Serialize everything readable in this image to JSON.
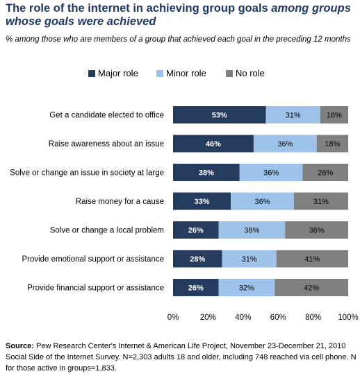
{
  "title": {
    "main": "The role of the internet in achieving group goals ",
    "italic": "among groups whose goals were achieved"
  },
  "subtitle": "% among those who are members of a group that achieved each goal in the preceding 12 months",
  "source": {
    "label": "Source:",
    "text": " Pew Research Center's Internet & American Life Project, November 23-December 21, 2010 Social Side of the Internet Survey. N=2,303 adults 18 and older, including 748 reached via cell phone. N for those active in groups=1,833."
  },
  "colors": {
    "major": "#253c5e",
    "minor": "#9ec3ea",
    "none": "#808080"
  },
  "chart_data": {
    "type": "bar",
    "orientation": "horizontal",
    "stacked": true,
    "categories": [
      "Get a candidate elected to office",
      "Raise awareness about an issue",
      "Solve or change an issue in society at large",
      "Raise money for a cause",
      "Solve or change a local problem",
      "Provide emotional support or assistance",
      "Provide financial support or assistance"
    ],
    "series": [
      {
        "name": "Major role",
        "values": [
          53,
          46,
          38,
          33,
          26,
          28,
          26
        ],
        "labels": [
          "53%",
          "46%",
          "38%",
          "33%",
          "26%",
          "28%",
          "26%"
        ]
      },
      {
        "name": "Minor role",
        "values": [
          31,
          36,
          36,
          36,
          38,
          31,
          32
        ],
        "labels": [
          "31%",
          "36%",
          "36%",
          "36%",
          "38%",
          "31%",
          "32%"
        ]
      },
      {
        "name": "No role",
        "values": [
          16,
          18,
          26,
          31,
          36,
          41,
          42
        ],
        "labels": [
          "16%",
          "18%",
          "26%",
          "31%",
          "36%",
          "41%",
          "42%"
        ]
      }
    ],
    "xlim": [
      0,
      100
    ],
    "xticks": [
      "0%",
      "20%",
      "40%",
      "60%",
      "80%",
      "100%"
    ],
    "legend_position": "top",
    "grid": false
  }
}
